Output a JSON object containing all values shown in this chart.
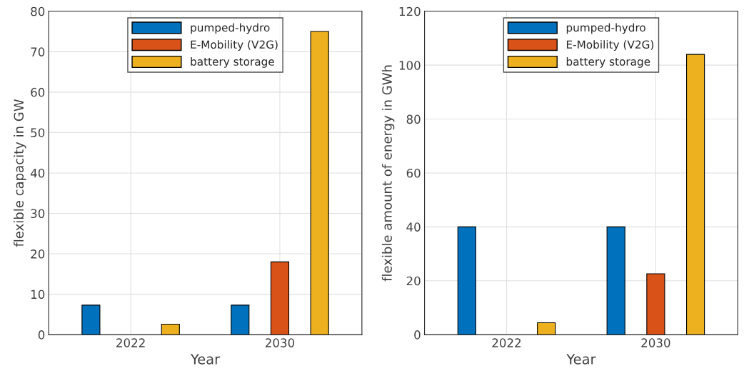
{
  "chart_data": [
    {
      "type": "bar",
      "xlabel": "Year",
      "ylabel": "flexible capacity in GW",
      "categories": [
        "2022",
        "2030"
      ],
      "ylim": [
        0,
        80
      ],
      "yticks": [
        0,
        10,
        20,
        30,
        40,
        50,
        60,
        70,
        80
      ],
      "grid": true,
      "legend": "top",
      "series": [
        {
          "name": "pumped-hydro",
          "color": "#0072bd",
          "values": [
            7.3,
            7.3
          ]
        },
        {
          "name": "E-Mobility (V2G)",
          "color": "#d95319",
          "values": [
            null,
            18
          ]
        },
        {
          "name": "battery storage",
          "color": "#edb120",
          "values": [
            2.6,
            75
          ]
        }
      ]
    },
    {
      "type": "bar",
      "xlabel": "Year",
      "ylabel": "flexible amount of energy in GWh",
      "categories": [
        "2022",
        "2030"
      ],
      "ylim": [
        0,
        120
      ],
      "yticks": [
        0,
        20,
        40,
        60,
        80,
        100,
        120
      ],
      "grid": true,
      "legend": "top",
      "series": [
        {
          "name": "pumped-hydro",
          "color": "#0072bd",
          "values": [
            40,
            40
          ]
        },
        {
          "name": "E-Mobility (V2G)",
          "color": "#d95319",
          "values": [
            null,
            22.6
          ]
        },
        {
          "name": "battery storage",
          "color": "#edb120",
          "values": [
            4.4,
            104
          ]
        }
      ]
    }
  ]
}
